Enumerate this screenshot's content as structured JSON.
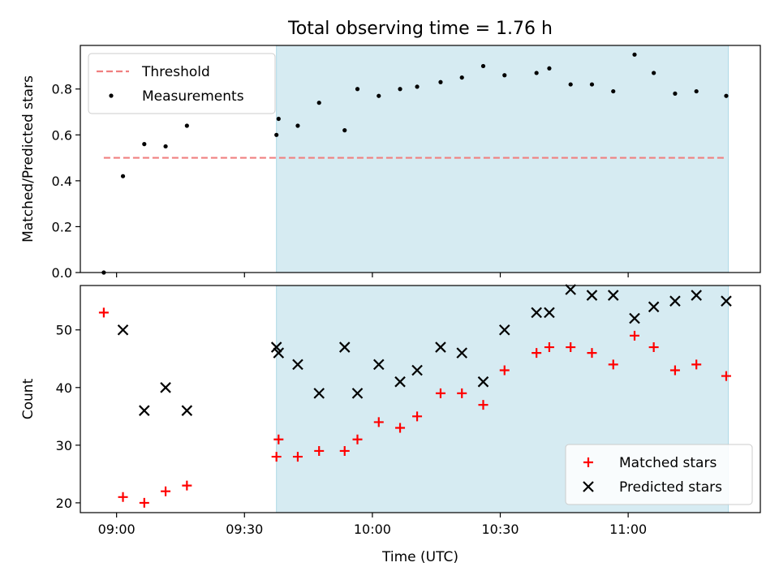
{
  "figure": {
    "title": "Total observing time = 1.76 h",
    "xlabel": "Time (UTC)",
    "x_ticks": [
      "09:00",
      "09:30",
      "10:00",
      "10:30",
      "11:00"
    ],
    "x_tick_minutes": [
      540,
      570,
      600,
      630,
      660
    ],
    "x_range_minutes": [
      531.5,
      691.0
    ],
    "shaded_interval_minutes": [
      577.5,
      683.5
    ],
    "shade_color": "#add8e6"
  },
  "chart_data": [
    {
      "type": "scatter",
      "ylabel": "Matched/Predicted stars",
      "ylim": [
        0.0,
        0.99
      ],
      "y_ticks": [
        0.0,
        0.2,
        0.4,
        0.6,
        0.8
      ],
      "y_tick_labels": [
        "0.0",
        "0.2",
        "0.4",
        "0.6",
        "0.8"
      ],
      "legend_position": "upper-left",
      "threshold": {
        "name": "Threshold",
        "value": 0.5,
        "x_minutes": [
          537,
          682.5
        ],
        "color": "#f08080"
      },
      "series": [
        {
          "name": "Measurements",
          "color": "#000000",
          "marker": "dot",
          "x_minutes": [
            537,
            541.5,
            546.5,
            551.5,
            556.5,
            577.5,
            578,
            582.5,
            587.5,
            593.5,
            596.5,
            601.5,
            606.5,
            610.5,
            616,
            621,
            626,
            631,
            638.5,
            641.5,
            646.5,
            651.5,
            656.5,
            661.5,
            666,
            671,
            676,
            683
          ],
          "y": [
            0.0,
            0.42,
            0.56,
            0.55,
            0.64,
            0.6,
            0.67,
            0.64,
            0.74,
            0.62,
            0.8,
            0.77,
            0.8,
            0.81,
            0.83,
            0.85,
            0.9,
            0.86,
            0.87,
            0.89,
            0.82,
            0.82,
            0.79,
            0.95,
            0.87,
            0.78,
            0.79,
            0.77
          ]
        }
      ]
    },
    {
      "type": "scatter",
      "ylabel": "Count",
      "ylim": [
        18.3,
        57.7
      ],
      "y_ticks": [
        20,
        30,
        40,
        50
      ],
      "y_tick_labels": [
        "20",
        "30",
        "40",
        "50"
      ],
      "legend_position": "lower-right",
      "series": [
        {
          "name": "Matched stars",
          "color": "#ff0000",
          "marker": "plus",
          "x_minutes": [
            537,
            541.5,
            546.5,
            551.5,
            556.5,
            577.5,
            578,
            582.5,
            587.5,
            593.5,
            596.5,
            601.5,
            606.5,
            610.5,
            616,
            621,
            626,
            631,
            638.5,
            641.5,
            646.5,
            651.5,
            656.5,
            661.5,
            666,
            671,
            676,
            683
          ],
          "y": [
            53,
            21,
            20,
            22,
            23,
            28,
            31,
            28,
            29,
            29,
            31,
            34,
            33,
            35,
            39,
            39,
            37,
            43,
            46,
            47,
            47,
            46,
            44,
            49,
            47,
            43,
            44,
            42
          ]
        },
        {
          "name": "Predicted stars",
          "color": "#000000",
          "marker": "x",
          "x_minutes": [
            541.5,
            546.5,
            551.5,
            556.5,
            577.5,
            578,
            582.5,
            587.5,
            593.5,
            596.5,
            601.5,
            606.5,
            610.5,
            616,
            621,
            626,
            631,
            638.5,
            641.5,
            646.5,
            651.5,
            656.5,
            661.5,
            666,
            671,
            676,
            683
          ],
          "y": [
            50,
            36,
            40,
            36,
            47,
            46,
            44,
            39,
            47,
            39,
            44,
            41,
            43,
            47,
            46,
            41,
            50,
            53,
            53,
            57,
            56,
            56,
            52,
            54,
            55,
            56,
            55
          ]
        }
      ]
    }
  ]
}
